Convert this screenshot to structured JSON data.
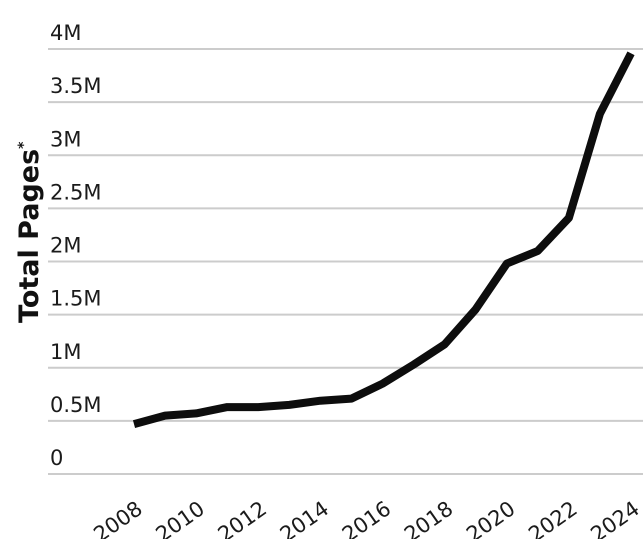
{
  "chart_data": {
    "type": "line",
    "title": "",
    "xlabel": "",
    "ylabel": "Total Pages",
    "ylabel_marker": "*",
    "x": [
      2008,
      2009,
      2010,
      2011,
      2012,
      2013,
      2014,
      2015,
      2016,
      2017,
      2018,
      2019,
      2020,
      2021,
      2022,
      2023,
      2024
    ],
    "series": [
      {
        "values": [
          470000,
          550000,
          570000,
          630000,
          630000,
          650000,
          690000,
          710000,
          850000,
          1030000,
          1220000,
          1550000,
          1980000,
          2100000,
          2410000,
          3390000,
          3960000
        ]
      }
    ],
    "xticks": [
      "2008",
      "2010",
      "2012",
      "2014",
      "2016",
      "2018",
      "2020",
      "2022",
      "2024"
    ],
    "xtick_values": [
      2008,
      2010,
      2012,
      2014,
      2016,
      2018,
      2020,
      2022,
      2024
    ],
    "yticks": [
      "0",
      "0.5M",
      "1M",
      "1.5M",
      "2M",
      "2.5M",
      "3M",
      "3.5M",
      "4M"
    ],
    "ytick_values": [
      0,
      500000,
      1000000,
      1500000,
      2000000,
      2500000,
      3000000,
      3500000,
      4000000
    ],
    "xlim": [
      2008,
      2024
    ],
    "ylim": [
      0,
      4000000
    ],
    "grid": true,
    "legend": "none",
    "colors": {
      "line": "#0d0d0d",
      "grid": "#cccccc",
      "text": "#1b1b1b"
    }
  }
}
